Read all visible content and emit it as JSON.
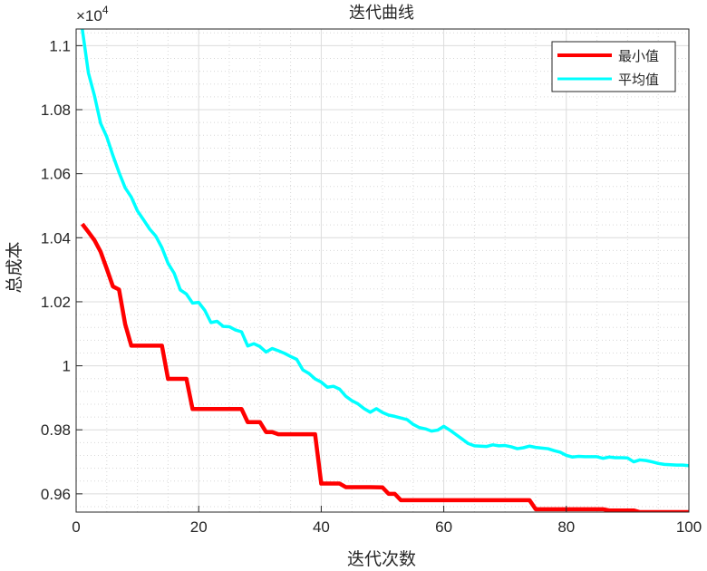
{
  "chart_data": {
    "type": "line",
    "title": "迭代曲线",
    "xlabel": "迭代次数",
    "ylabel": "总成本",
    "y_exponent_label": "×10^4",
    "y_exponent_base": "×10",
    "y_exponent_power": "4",
    "xlim": [
      0,
      100
    ],
    "ylim": [
      0.9543,
      1.1052
    ],
    "x_ticks": [
      0,
      20,
      40,
      60,
      80,
      100
    ],
    "x_tick_labels": [
      "0",
      "20",
      "40",
      "60",
      "80",
      "100"
    ],
    "y_ticks": [
      0.96,
      0.98,
      1.0,
      1.02,
      1.04,
      1.06,
      1.08,
      1.1
    ],
    "y_tick_labels": [
      "0.96",
      "0.98",
      "1",
      "1.02",
      "1.04",
      "1.06",
      "1.08",
      "1.1"
    ],
    "grid": "major and minor",
    "legend_position": "top-right",
    "series": [
      {
        "name": "最小值",
        "color": "#ff0000",
        "points": [
          [
            1,
            1.0443
          ],
          [
            2,
            1.0418
          ],
          [
            3,
            1.0392
          ],
          [
            4,
            1.0356
          ],
          [
            5,
            1.0303
          ],
          [
            6,
            1.0248
          ],
          [
            7,
            1.0238
          ],
          [
            8,
            1.013
          ],
          [
            9,
            1.0063
          ],
          [
            10,
            1.0063
          ],
          [
            13,
            1.0063
          ],
          [
            14,
            1.0063
          ],
          [
            15,
            0.9959
          ],
          [
            16,
            0.9959
          ],
          [
            18,
            0.9959
          ],
          [
            19,
            0.9865
          ],
          [
            26,
            0.9865
          ],
          [
            27,
            0.9865
          ],
          [
            28,
            0.9824
          ],
          [
            30,
            0.9824
          ],
          [
            31,
            0.9793
          ],
          [
            32,
            0.9793
          ],
          [
            33,
            0.9786
          ],
          [
            39,
            0.9786
          ],
          [
            40,
            0.9632
          ],
          [
            42,
            0.9632
          ],
          [
            43,
            0.9632
          ],
          [
            44,
            0.9621
          ],
          [
            48,
            0.9621
          ],
          [
            50,
            0.962
          ],
          [
            51,
            0.96
          ],
          [
            52,
            0.96
          ],
          [
            53,
            0.958
          ],
          [
            74,
            0.958
          ],
          [
            75,
            0.9552
          ],
          [
            82,
            0.9552
          ],
          [
            86,
            0.9552
          ],
          [
            87,
            0.9548
          ],
          [
            91,
            0.9548
          ],
          [
            92,
            0.9543
          ],
          [
            101,
            0.9543
          ]
        ]
      },
      {
        "name": "平均值",
        "color": "#00ffff",
        "points": [
          [
            1,
            1.1052
          ],
          [
            2,
            1.0915
          ],
          [
            3,
            1.0843
          ],
          [
            4,
            1.0757
          ],
          [
            5,
            1.0715
          ],
          [
            6,
            1.0657
          ],
          [
            7,
            1.0604
          ],
          [
            8,
            1.0556
          ],
          [
            9,
            1.0527
          ],
          [
            10,
            1.0484
          ],
          [
            11,
            1.0456
          ],
          [
            12,
            1.0427
          ],
          [
            13,
            1.0405
          ],
          [
            14,
            1.0369
          ],
          [
            15,
            1.032
          ],
          [
            16,
            1.0289
          ],
          [
            17,
            1.0237
          ],
          [
            18,
            1.0224
          ],
          [
            19,
            1.0196
          ],
          [
            20,
            1.0198
          ],
          [
            21,
            1.0173
          ],
          [
            22,
            1.0135
          ],
          [
            23,
            1.0139
          ],
          [
            24,
            1.0123
          ],
          [
            25,
            1.0122
          ],
          [
            26,
            1.0112
          ],
          [
            27,
            1.0106
          ],
          [
            28,
            1.0062
          ],
          [
            29,
            1.0069
          ],
          [
            30,
            1.006
          ],
          [
            31,
            1.0043
          ],
          [
            32,
            1.0054
          ],
          [
            33,
            1.0047
          ],
          [
            34,
            1.0039
          ],
          [
            35,
            1.0029
          ],
          [
            36,
            1.002
          ],
          [
            37,
            0.9987
          ],
          [
            38,
            0.9976
          ],
          [
            39,
            0.9959
          ],
          [
            40,
            0.9949
          ],
          [
            41,
            0.9933
          ],
          [
            42,
            0.9936
          ],
          [
            43,
            0.9927
          ],
          [
            44,
            0.9905
          ],
          [
            45,
            0.9891
          ],
          [
            46,
            0.9881
          ],
          [
            47,
            0.9866
          ],
          [
            48,
            0.9855
          ],
          [
            49,
            0.9866
          ],
          [
            50,
            0.9854
          ],
          [
            51,
            0.9846
          ],
          [
            52,
            0.9842
          ],
          [
            53,
            0.9837
          ],
          [
            54,
            0.9832
          ],
          [
            55,
            0.9817
          ],
          [
            56,
            0.9807
          ],
          [
            57,
            0.9803
          ],
          [
            58,
            0.9796
          ],
          [
            59,
            0.9799
          ],
          [
            60,
            0.9811
          ],
          [
            61,
            0.9799
          ],
          [
            62,
            0.9785
          ],
          [
            63,
            0.9771
          ],
          [
            64,
            0.9757
          ],
          [
            65,
            0.975
          ],
          [
            66,
            0.9749
          ],
          [
            67,
            0.9748
          ],
          [
            68,
            0.9753
          ],
          [
            69,
            0.975
          ],
          [
            70,
            0.9751
          ],
          [
            71,
            0.9747
          ],
          [
            72,
            0.9741
          ],
          [
            73,
            0.9744
          ],
          [
            74,
            0.9749
          ],
          [
            75,
            0.9745
          ],
          [
            76,
            0.9743
          ],
          [
            77,
            0.9741
          ],
          [
            78,
            0.9735
          ],
          [
            79,
            0.973
          ],
          [
            80,
            0.972
          ],
          [
            81,
            0.9715
          ],
          [
            82,
            0.9717
          ],
          [
            83,
            0.9716
          ],
          [
            84,
            0.9716
          ],
          [
            85,
            0.9716
          ],
          [
            86,
            0.9711
          ],
          [
            87,
            0.9715
          ],
          [
            88,
            0.9713
          ],
          [
            89,
            0.9713
          ],
          [
            90,
            0.9712
          ],
          [
            91,
            0.97
          ],
          [
            92,
            0.9706
          ],
          [
            93,
            0.9704
          ],
          [
            94,
            0.97
          ],
          [
            95,
            0.9695
          ],
          [
            96,
            0.9692
          ],
          [
            97,
            0.9691
          ],
          [
            98,
            0.969
          ],
          [
            99,
            0.969
          ],
          [
            100,
            0.9688
          ],
          [
            101,
            0.9688
          ]
        ]
      }
    ]
  }
}
